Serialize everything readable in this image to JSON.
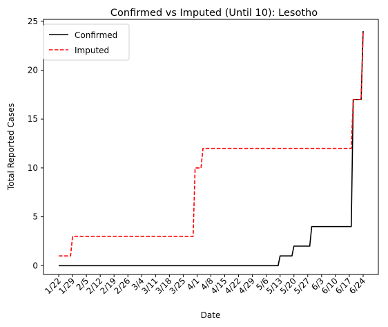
{
  "chart_data": {
    "type": "line",
    "title": "Confirmed vs Imputed (Until 10): Lesotho",
    "xlabel": "Date",
    "ylabel": "Total Reported Cases",
    "x_ticks": [
      "1/22",
      "1/29",
      "2/5",
      "2/12",
      "2/19",
      "2/26",
      "3/4",
      "3/11",
      "3/18",
      "3/25",
      "4/1",
      "4/8",
      "4/15",
      "4/22",
      "4/29",
      "5/6",
      "5/13",
      "5/20",
      "5/27",
      "6/3",
      "6/10",
      "6/17",
      "6/24"
    ],
    "y_ticks": [
      0,
      5,
      10,
      15,
      20,
      25
    ],
    "ylim": [
      -0.9,
      25.2
    ],
    "grid": false,
    "legend_position": "top-left",
    "series": [
      {
        "name": "Confirmed",
        "color": "#000000",
        "style": "solid",
        "points": [
          [
            "1/22",
            0
          ],
          [
            "5/12",
            0
          ],
          [
            "5/13",
            1
          ],
          [
            "5/19",
            1
          ],
          [
            "5/20",
            2
          ],
          [
            "5/28",
            2
          ],
          [
            "5/29",
            4
          ],
          [
            "6/18",
            4
          ],
          [
            "6/19",
            17
          ],
          [
            "6/23",
            17
          ],
          [
            "6/24",
            24
          ]
        ]
      },
      {
        "name": "Imputed",
        "color": "#ff0000",
        "style": "dashed",
        "points": [
          [
            "1/22",
            1
          ],
          [
            "1/28",
            1
          ],
          [
            "1/29",
            3
          ],
          [
            "3/30",
            3
          ],
          [
            "3/31",
            10
          ],
          [
            "4/3",
            10
          ],
          [
            "4/4",
            12
          ],
          [
            "6/18",
            12
          ],
          [
            "6/19",
            17
          ],
          [
            "6/23",
            17
          ],
          [
            "6/24",
            24
          ]
        ]
      }
    ]
  }
}
